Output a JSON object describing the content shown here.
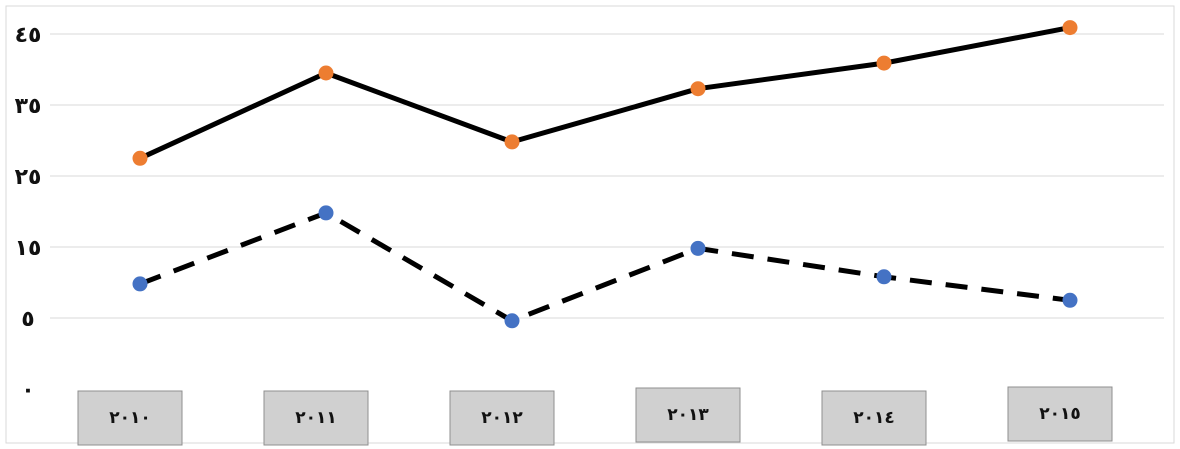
{
  "chart_data": {
    "type": "line",
    "categories": [
      "٢٠١٠",
      "٢٠١١",
      "٢٠١٢",
      "٢٠١٣",
      "٢٠١٤",
      "٢٠١٥"
    ],
    "y_ticks": [
      {
        "value": 0,
        "label": "٠"
      },
      {
        "value": 5,
        "label": "٥"
      },
      {
        "value": 15,
        "label": "١٥"
      },
      {
        "value": 25,
        "label": "٢٥"
      },
      {
        "value": 35,
        "label": "٣٥"
      },
      {
        "value": 45,
        "label": "٤٥"
      }
    ],
    "ylim": [
      0,
      45
    ],
    "grid": true,
    "legend": "none",
    "series": [
      {
        "values": [
          27.5,
          39.5,
          29.8,
          37.3,
          40.9,
          45.9
        ],
        "line": "solid",
        "line_color": "#000000",
        "marker_color": "#ED7D31"
      },
      {
        "values": [
          9.8,
          19.8,
          4.8,
          14.8,
          10.8,
          7.5
        ],
        "line": "dashed",
        "line_color": "#000000",
        "marker_color": "#4472C4"
      }
    ],
    "title": "",
    "xlabel": "",
    "ylabel": ""
  }
}
